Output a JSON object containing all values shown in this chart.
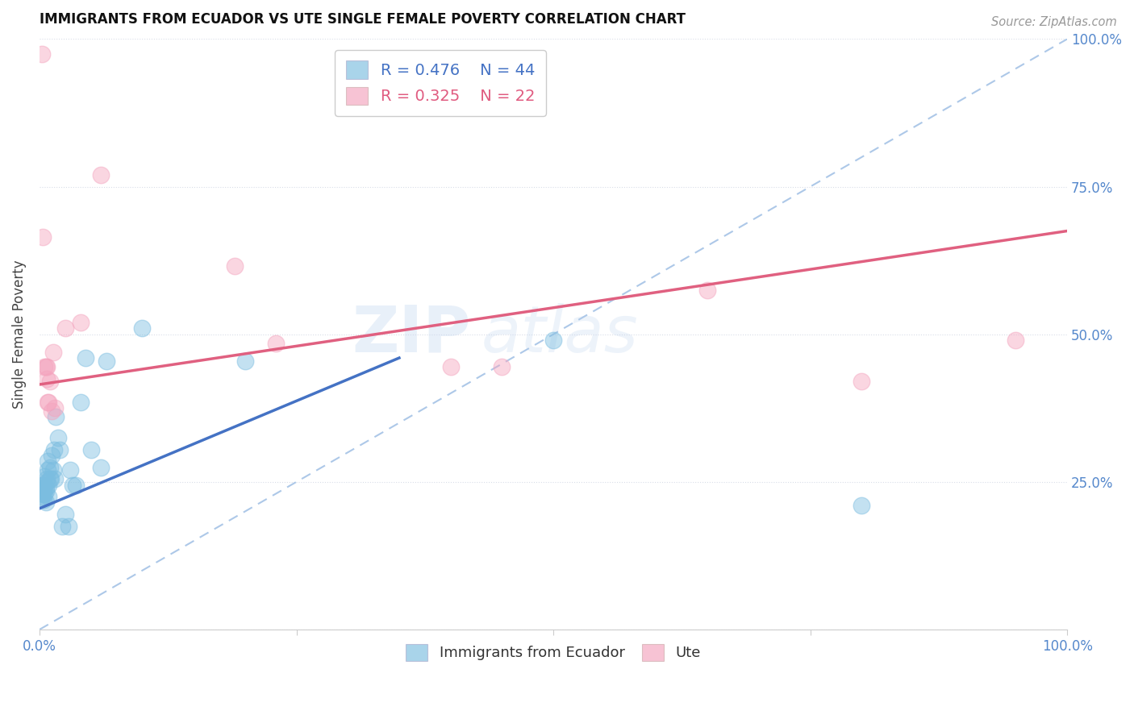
{
  "title": "IMMIGRANTS FROM ECUADOR VS UTE SINGLE FEMALE POVERTY CORRELATION CHART",
  "source": "Source: ZipAtlas.com",
  "ylabel": "Single Female Poverty",
  "xlim": [
    0.0,
    1.0
  ],
  "ylim": [
    0.0,
    1.0
  ],
  "watermark_zip": "ZIP",
  "watermark_atlas": "atlas",
  "legend_r1": "R = 0.476",
  "legend_n1": "N = 44",
  "legend_r2": "R = 0.325",
  "legend_n2": "N = 22",
  "blue_color": "#7bbde0",
  "pink_color": "#f4a4be",
  "blue_line_color": "#4472c4",
  "pink_line_color": "#e06080",
  "dashed_line_color": "#adc8e8",
  "blue_scatter": [
    [
      0.001,
      0.235
    ],
    [
      0.002,
      0.225
    ],
    [
      0.002,
      0.245
    ],
    [
      0.003,
      0.24
    ],
    [
      0.003,
      0.23
    ],
    [
      0.004,
      0.235
    ],
    [
      0.004,
      0.22
    ],
    [
      0.005,
      0.245
    ],
    [
      0.005,
      0.26
    ],
    [
      0.005,
      0.23
    ],
    [
      0.006,
      0.215
    ],
    [
      0.006,
      0.24
    ],
    [
      0.006,
      0.235
    ],
    [
      0.007,
      0.255
    ],
    [
      0.007,
      0.25
    ],
    [
      0.008,
      0.27
    ],
    [
      0.008,
      0.285
    ],
    [
      0.009,
      0.245
    ],
    [
      0.009,
      0.225
    ],
    [
      0.01,
      0.275
    ],
    [
      0.01,
      0.255
    ],
    [
      0.011,
      0.255
    ],
    [
      0.012,
      0.295
    ],
    [
      0.013,
      0.27
    ],
    [
      0.014,
      0.305
    ],
    [
      0.015,
      0.255
    ],
    [
      0.016,
      0.36
    ],
    [
      0.018,
      0.325
    ],
    [
      0.02,
      0.305
    ],
    [
      0.022,
      0.175
    ],
    [
      0.025,
      0.195
    ],
    [
      0.028,
      0.175
    ],
    [
      0.03,
      0.27
    ],
    [
      0.032,
      0.245
    ],
    [
      0.035,
      0.245
    ],
    [
      0.04,
      0.385
    ],
    [
      0.045,
      0.46
    ],
    [
      0.05,
      0.305
    ],
    [
      0.06,
      0.275
    ],
    [
      0.065,
      0.455
    ],
    [
      0.1,
      0.51
    ],
    [
      0.2,
      0.455
    ],
    [
      0.5,
      0.49
    ],
    [
      0.8,
      0.21
    ]
  ],
  "pink_scatter": [
    [
      0.002,
      0.975
    ],
    [
      0.003,
      0.665
    ],
    [
      0.005,
      0.445
    ],
    [
      0.006,
      0.445
    ],
    [
      0.007,
      0.445
    ],
    [
      0.007,
      0.425
    ],
    [
      0.008,
      0.385
    ],
    [
      0.009,
      0.385
    ],
    [
      0.01,
      0.42
    ],
    [
      0.012,
      0.37
    ],
    [
      0.013,
      0.47
    ],
    [
      0.015,
      0.375
    ],
    [
      0.025,
      0.51
    ],
    [
      0.04,
      0.52
    ],
    [
      0.06,
      0.77
    ],
    [
      0.19,
      0.615
    ],
    [
      0.23,
      0.485
    ],
    [
      0.4,
      0.445
    ],
    [
      0.45,
      0.445
    ],
    [
      0.65,
      0.575
    ],
    [
      0.8,
      0.42
    ],
    [
      0.95,
      0.49
    ]
  ],
  "blue_trendline_x": [
    0.0,
    0.35
  ],
  "blue_trendline_y": [
    0.205,
    0.46
  ],
  "pink_trendline_x": [
    0.0,
    1.0
  ],
  "pink_trendline_y": [
    0.415,
    0.675
  ],
  "dashed_line_x": [
    0.0,
    1.0
  ],
  "dashed_line_y": [
    0.0,
    1.0
  ]
}
